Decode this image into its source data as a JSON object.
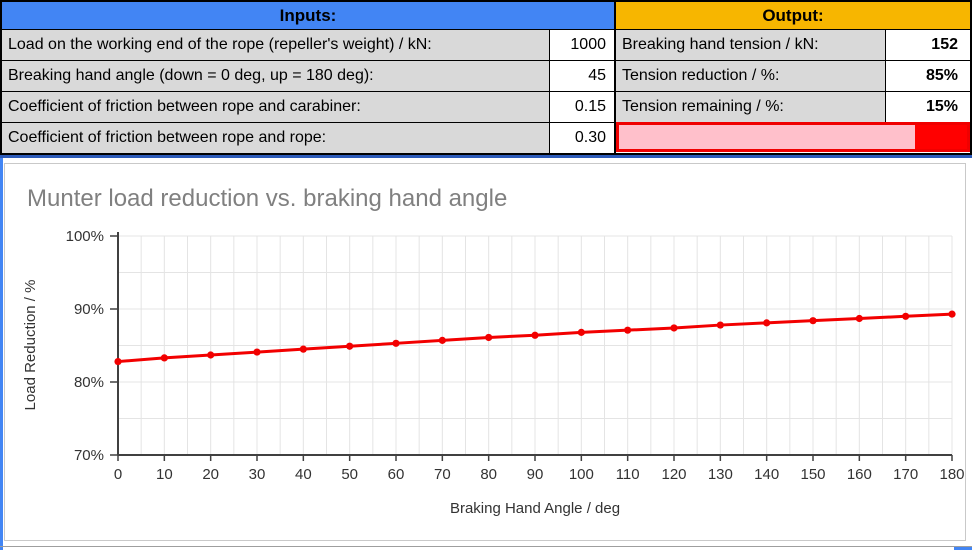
{
  "inputs_table": {
    "header": "Inputs:",
    "header_color": "#4285f4",
    "rows": [
      {
        "label": "Load on the working end of the rope (repeller's weight) / kN:",
        "value": "1000"
      },
      {
        "label": "Breaking hand angle (down = 0 deg, up = 180 deg):",
        "value": "45"
      },
      {
        "label": "Coefficient of friction between rope and carabiner:",
        "value": "0.15"
      },
      {
        "label": "Coefficient of friction between rope and rope:",
        "value": "0.30"
      }
    ]
  },
  "output_table": {
    "header": "Output:",
    "header_color": "#f7b600",
    "rows": [
      {
        "label": "Breaking hand tension / kN:",
        "value": "152"
      },
      {
        "label": "Tension reduction / %:",
        "value": "85%"
      },
      {
        "label": "Tension remaining / %:",
        "value": "15%"
      }
    ],
    "bar": {
      "reduction_pct": 85,
      "remaining_pct": 15,
      "fill_color": "#ffc0cb",
      "remainder_color": "#ff0000",
      "border_color": "#f00000"
    }
  },
  "colors": {
    "table_label_bg": "#d9d9d9",
    "blue_rule": "#2d5bb9",
    "left_accent": "#4285f4",
    "corner_accent": "#4285f4",
    "grid": "#e4e4e4",
    "axis": "#404040"
  },
  "chart_data": {
    "type": "line",
    "title": "Munter load reduction vs. braking hand angle",
    "xlabel": "Braking Hand Angle / deg",
    "ylabel": "Load Reduction / %",
    "x": [
      0,
      10,
      20,
      30,
      40,
      50,
      60,
      70,
      80,
      90,
      100,
      110,
      120,
      130,
      140,
      150,
      160,
      170,
      180
    ],
    "series": [
      {
        "name": "Load reduction",
        "color": "#f20000",
        "values": [
          82.8,
          83.3,
          83.7,
          84.1,
          84.5,
          84.9,
          85.3,
          85.7,
          86.1,
          86.4,
          86.8,
          87.1,
          87.4,
          87.8,
          88.1,
          88.4,
          88.7,
          89.0,
          89.3
        ]
      }
    ],
    "xlim": [
      0,
      180
    ],
    "ylim": [
      70,
      100
    ],
    "x_tick_step": 10,
    "y_tick_step": 10,
    "x_minor_grid_step": 5,
    "y_minor_grid_step": 5,
    "y_tick_labels": [
      "70%",
      "80%",
      "90%",
      "100%"
    ],
    "grid": true,
    "legend": false,
    "marker": "circle"
  }
}
